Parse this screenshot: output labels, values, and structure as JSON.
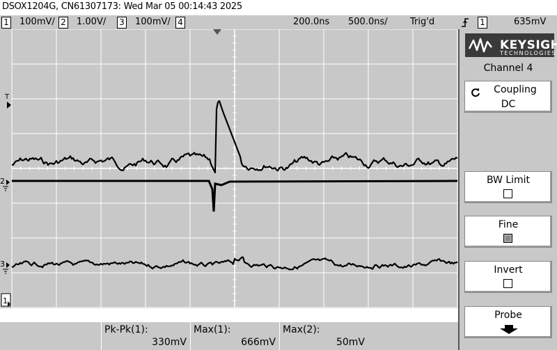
{
  "title": "DSOX1204G, CN61307173: Wed Mar 05 00:14:43 2025",
  "status": {
    "ch1_num": "1",
    "ch1_scale": "100mV/",
    "ch2_num": "2",
    "ch2_scale": "1.00V/",
    "ch3_num": "3",
    "ch3_scale": "100mV/",
    "ch4_num": "4",
    "time_delay": "200.0ns",
    "time_scale": "500.0ns/",
    "trig_status": "Trig'd",
    "trig_source": "1",
    "trig_level": "635mV"
  },
  "markers": {
    "trigger": "T",
    "ch1": "1",
    "ch2": "2",
    "ch3": "3"
  },
  "side": {
    "logo": "KEYSIGHT",
    "logo_sub": "TECHNOLOGIES",
    "channel_title": "Channel 4",
    "coupling_label": "Coupling",
    "coupling_value": "DC",
    "bw_label": "BW Limit",
    "fine_label": "Fine",
    "invert_label": "Invert",
    "probe_label": "Probe"
  },
  "measurements": [
    {
      "name": "Pk-Pk(1):",
      "value": "330mV"
    },
    {
      "name": "Max(1):",
      "value": "666mV"
    },
    {
      "name": "Max(2):",
      "value": "50mV"
    }
  ],
  "colors": {
    "background": "#c8c8c8",
    "grid": "#ffffff",
    "trace": "#000000",
    "logo": "#3a3a3a"
  },
  "icons": [
    "trigger-edge-icon",
    "coupling-cycle-icon",
    "probe-down-arrow-icon",
    "keysight-wave-logo-icon"
  ]
}
